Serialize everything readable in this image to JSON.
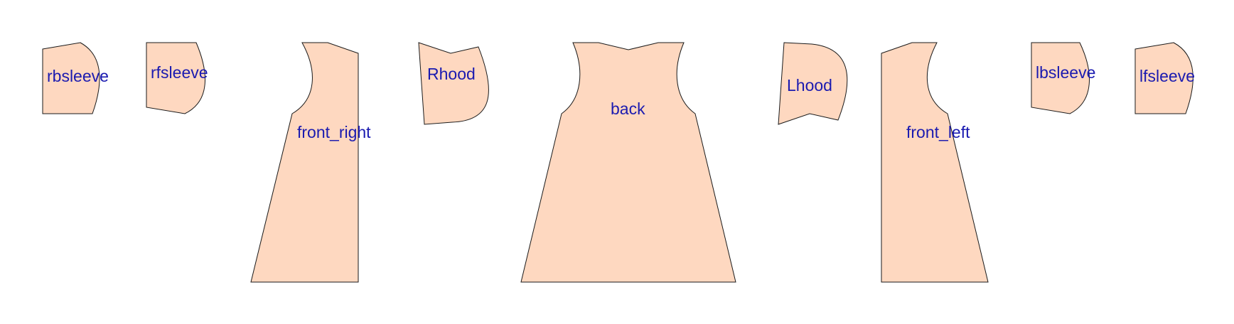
{
  "colors": {
    "panel_fill": "#fed8c0",
    "label_color": "#1a1ab0"
  },
  "panels": [
    {
      "id": "rbsleeve",
      "label": "rbsleeve"
    },
    {
      "id": "rfsleeve",
      "label": "rfsleeve"
    },
    {
      "id": "front_right",
      "label": "front_right"
    },
    {
      "id": "Rhood",
      "label": "Rhood"
    },
    {
      "id": "back",
      "label": "back"
    },
    {
      "id": "Lhood",
      "label": "Lhood"
    },
    {
      "id": "front_left",
      "label": "front_left"
    },
    {
      "id": "lbsleeve",
      "label": "lbsleeve"
    },
    {
      "id": "lfsleeve",
      "label": "lfsleeve"
    }
  ]
}
